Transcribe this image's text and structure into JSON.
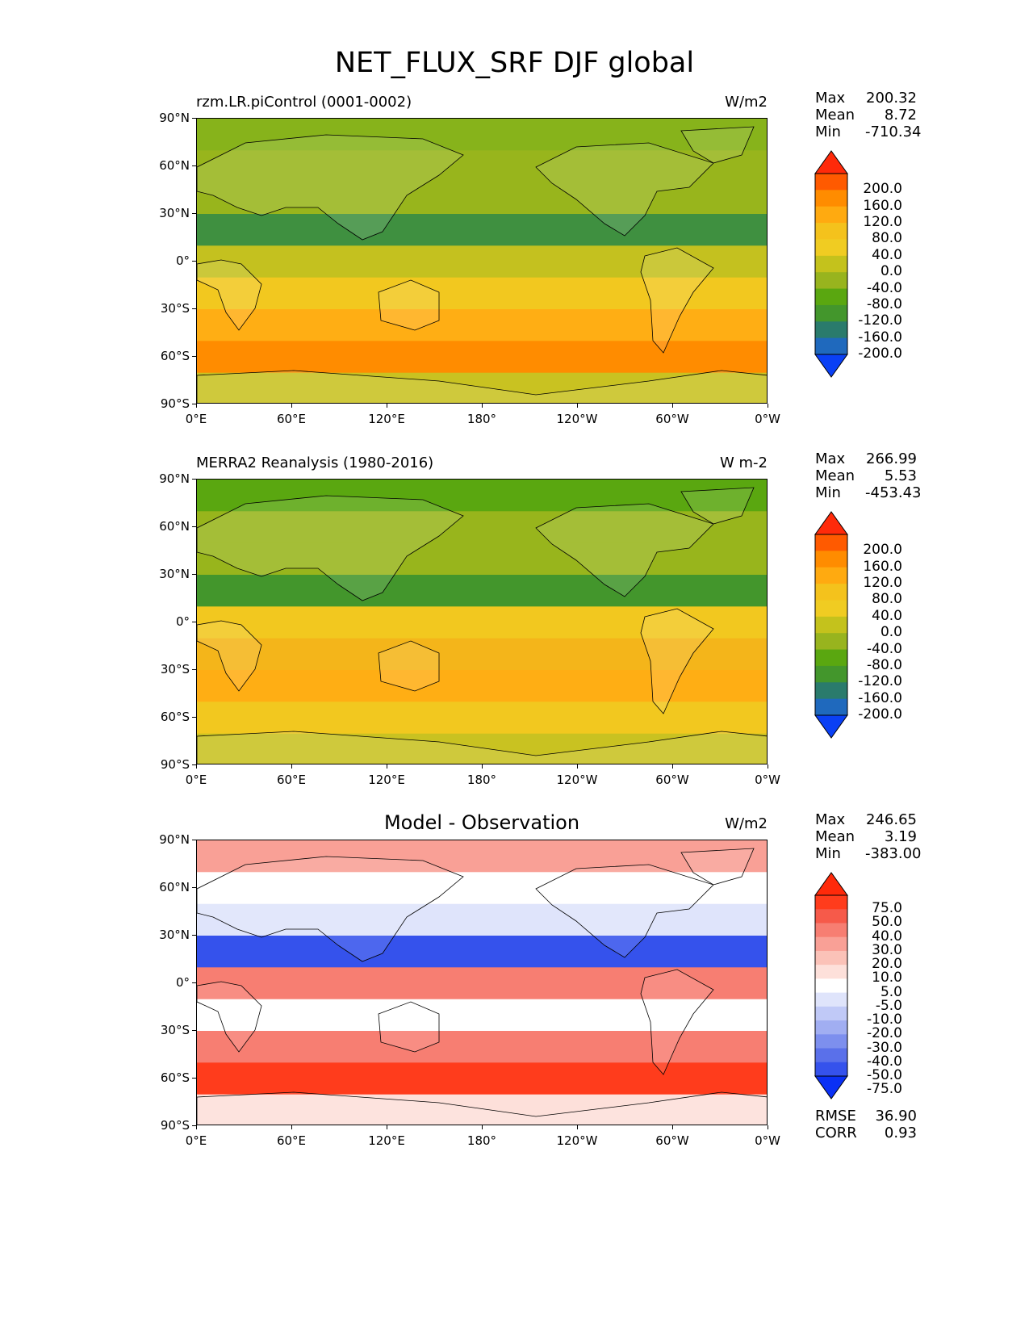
{
  "title": "NET_FLUX_SRF DJF global",
  "lat_ticks": [
    "90°N",
    "60°N",
    "30°N",
    "0°",
    "30°S",
    "60°S",
    "90°S"
  ],
  "lon_ticks": [
    "0°E",
    "60°E",
    "120°E",
    "180°",
    "120°W",
    "60°W",
    "0°W"
  ],
  "panels": [
    {
      "left_label": "rzm.LR.piControl (0001-0002)",
      "center_title": "",
      "units": "W/m2",
      "stats": [
        {
          "key": "Max",
          "value": "200.32"
        },
        {
          "key": "Mean",
          "value": "8.72"
        },
        {
          "key": "Min",
          "value": "-710.34"
        }
      ],
      "cbar_labels": [
        "200.0",
        "160.0",
        "120.0",
        "80.0",
        "40.0",
        "0.0",
        "-40.0",
        "-80.0",
        "-120.0",
        "-160.0",
        "-200.0"
      ],
      "cbar_colors": [
        "#ff2a0a",
        "#ff5a00",
        "#ff8c00",
        "#ffaa10",
        "#f4c21c",
        "#f0cc22",
        "#c4c21c",
        "#98b41e",
        "#5aa710",
        "#43962c",
        "#2a7b6c",
        "#1f69bd",
        "#0a40f5"
      ],
      "bands": [
        "#87b31b",
        "#98b51c",
        "#98b51c",
        "#3f9040",
        "#c4c11f",
        "#f2c81f",
        "#ffae14",
        "#ff8c00",
        "#c9c221"
      ]
    },
    {
      "left_label": "MERRA2 Reanalysis (1980-2016)",
      "center_title": "",
      "units": "W m-2",
      "stats": [
        {
          "key": "Max",
          "value": "266.99"
        },
        {
          "key": "Mean",
          "value": "5.53"
        },
        {
          "key": "Min",
          "value": "-453.43"
        }
      ],
      "cbar_labels": [
        "200.0",
        "160.0",
        "120.0",
        "80.0",
        "40.0",
        "0.0",
        "-40.0",
        "-80.0",
        "-120.0",
        "-160.0",
        "-200.0"
      ],
      "cbar_colors": [
        "#ff2a0a",
        "#ff5a00",
        "#ff8c00",
        "#ffaa10",
        "#f4c21c",
        "#f0cc22",
        "#c4c21c",
        "#98b41e",
        "#5aa710",
        "#43962c",
        "#2a7b6c",
        "#1f69bd",
        "#0a40f5"
      ],
      "bands": [
        "#5aa710",
        "#98b51c",
        "#98b51c",
        "#43962c",
        "#f2c81f",
        "#f4b51a",
        "#ffae14",
        "#f2c81f",
        "#c9c221"
      ]
    },
    {
      "left_label": "",
      "center_title": "Model - Observation",
      "units": "W/m2",
      "stats": [
        {
          "key": "Max",
          "value": "246.65"
        },
        {
          "key": "Mean",
          "value": "3.19"
        },
        {
          "key": "Min",
          "value": "-383.00"
        }
      ],
      "cbar_labels": [
        "75.0",
        "50.0",
        "40.0",
        "30.0",
        "20.0",
        "10.0",
        "5.0",
        "-5.0",
        "-10.0",
        "-20.0",
        "-30.0",
        "-40.0",
        "-50.0",
        "-75.0"
      ],
      "cbar_colors": [
        "#ff2a0a",
        "#ff3c1c",
        "#f65a4a",
        "#f77e72",
        "#f9a096",
        "#fbc2b8",
        "#fde0da",
        "#ffffff",
        "#dfe4fb",
        "#c0c9f7",
        "#a1aef2",
        "#7d8fee",
        "#5a70ea",
        "#3552ec",
        "#0a30f5"
      ],
      "bands": [
        "#f9a096",
        "#ffffff",
        "#dfe4fb",
        "#3552ec",
        "#f77e72",
        "#ffffff",
        "#f77e72",
        "#ff3c1c",
        "#fde0da"
      ],
      "extra": [
        {
          "key": "RMSE",
          "value": "36.90"
        },
        {
          "key": "CORR",
          "value": "0.93"
        }
      ]
    }
  ],
  "colors": {
    "coast": "#000000"
  }
}
